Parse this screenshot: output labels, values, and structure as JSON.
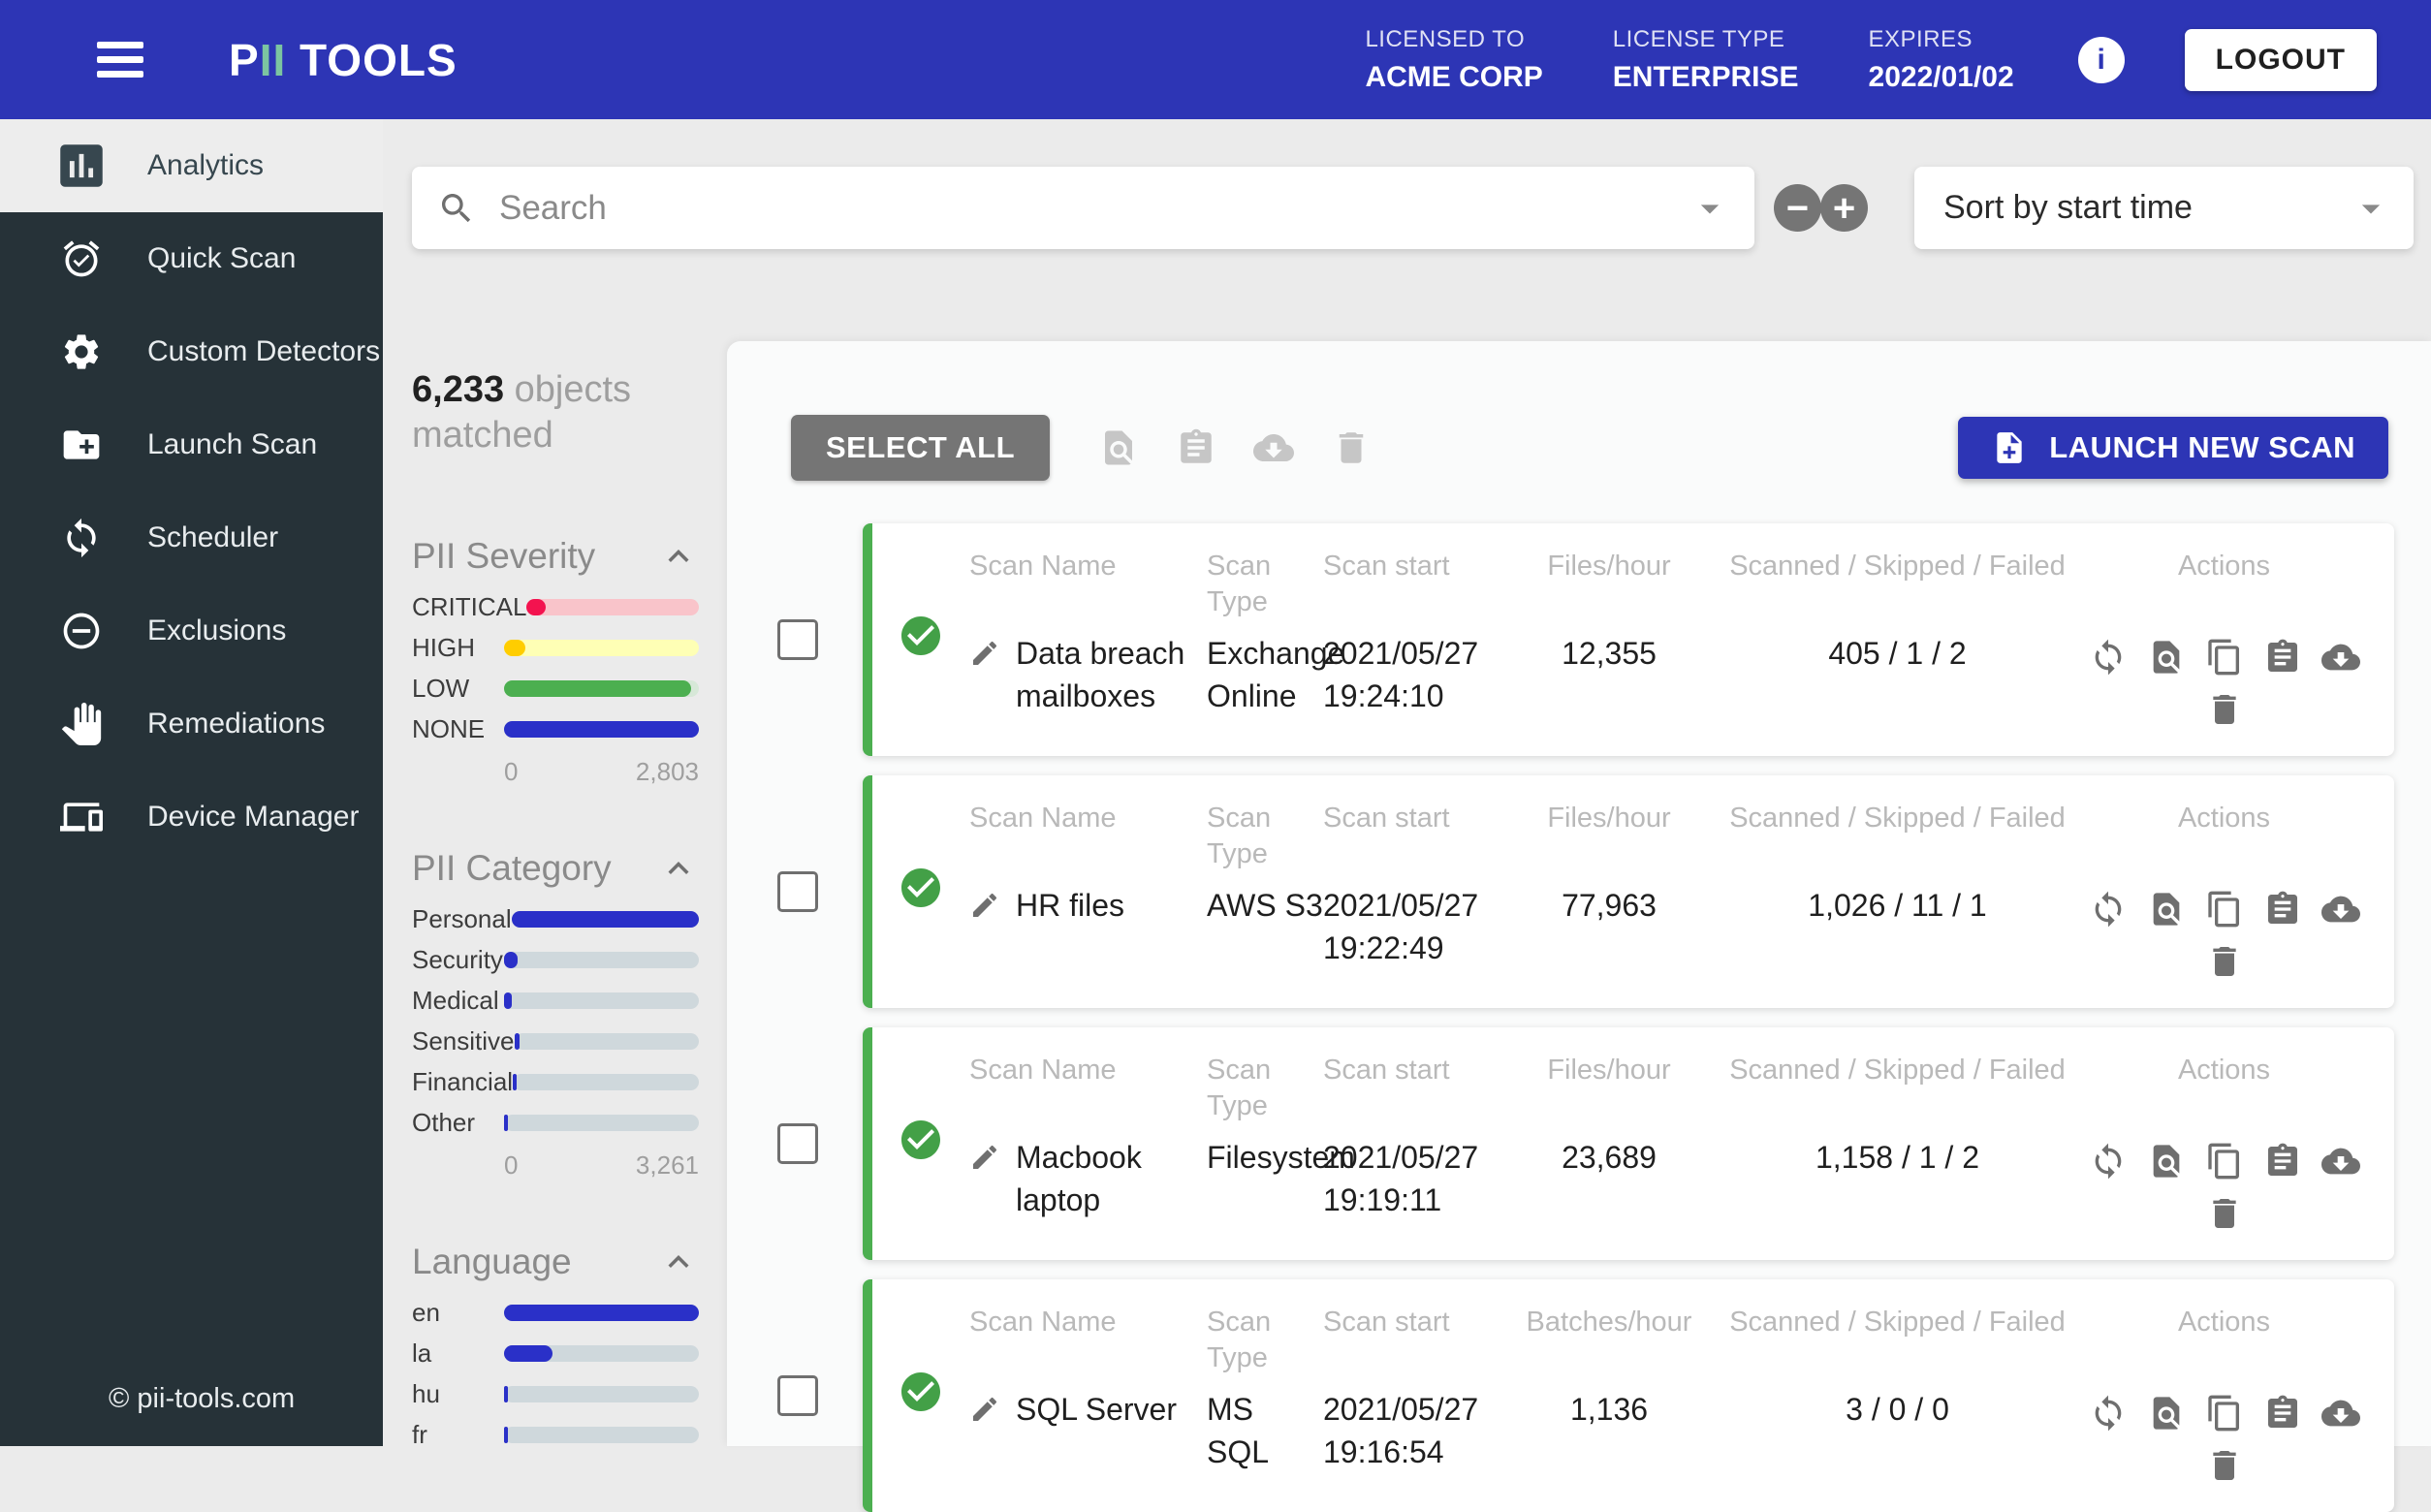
{
  "colors": {
    "brand_blue": "#2d35b5",
    "bar_blue": "#2a30c8",
    "success_green": "#43a047",
    "card_border_green": "#4caf50",
    "critical_red": "#f3134f",
    "high_yellow": "#ffcd00",
    "sidebar_dark": "#263238"
  },
  "header": {
    "logo_part1": "P",
    "logo_part2": "II",
    "logo_part3": " TOOLS",
    "license": [
      {
        "label": "LICENSED TO",
        "value": "ACME CORP"
      },
      {
        "label": "LICENSE TYPE",
        "value": "ENTERPRISE"
      },
      {
        "label": "EXPIRES",
        "value": "2022/01/02"
      }
    ],
    "info_glyph": "i",
    "logout_label": "LOGOUT"
  },
  "sidebar": {
    "items": [
      {
        "label": "Analytics",
        "icon": "bar-chart-icon",
        "active": true
      },
      {
        "label": "Quick Scan",
        "icon": "alarm-check-icon",
        "active": false
      },
      {
        "label": "Custom Detectors",
        "icon": "gear-icon",
        "active": false
      },
      {
        "label": "Launch Scan",
        "icon": "folder-plus-icon",
        "active": false
      },
      {
        "label": "Scheduler",
        "icon": "sync-icon",
        "active": false
      },
      {
        "label": "Exclusions",
        "icon": "minus-circle-icon",
        "active": false
      },
      {
        "label": "Remediations",
        "icon": "hand-icon",
        "active": false
      },
      {
        "label": "Device Manager",
        "icon": "devices-icon",
        "active": false
      }
    ],
    "footer": "© pii-tools.com"
  },
  "toolbar_top": {
    "search_placeholder": "Search",
    "search_icon": "magnifier-icon",
    "collapse_icon": "minus-circle-button",
    "expand_icon": "plus-circle-button",
    "minus_glyph": "−",
    "plus_glyph": "+",
    "sort_value": "Sort by start time"
  },
  "filters": {
    "matched_value": "6,233",
    "matched_label": " objects matched",
    "sections": [
      {
        "title": "PII Severity",
        "axis_min": "0",
        "axis_max": "2,803",
        "rows": [
          {
            "label": "CRITICAL",
            "pct": 11,
            "fill": "#f3134f",
            "track": "#f9c4ca"
          },
          {
            "label": "HIGH",
            "pct": 11,
            "fill": "#ffcd00",
            "track": "#feffb5"
          },
          {
            "label": "LOW",
            "pct": 96,
            "fill": "#4caf50",
            "track": "#d7e8d8"
          },
          {
            "label": "NONE",
            "pct": 100,
            "fill": "#2a30c8",
            "track": "#cfd8dc"
          }
        ]
      },
      {
        "title": "PII Category",
        "axis_min": "0",
        "axis_max": "3,261",
        "rows": [
          {
            "label": "Personal",
            "pct": 100,
            "fill": "#2a30c8",
            "track": "#cfd8dc"
          },
          {
            "label": "Security",
            "pct": 7,
            "fill": "#2a30c8",
            "track": "#cfd8dc"
          },
          {
            "label": "Medical",
            "pct": 4,
            "fill": "#2a30c8",
            "track": "#cfd8dc"
          },
          {
            "label": "Sensitive",
            "pct": 3,
            "fill": "#2a30c8",
            "track": "#cfd8dc"
          },
          {
            "label": "Financial",
            "pct": 2,
            "fill": "#2a30c8",
            "track": "#cfd8dc"
          },
          {
            "label": "Other",
            "pct": 2,
            "fill": "#2a30c8",
            "track": "#cfd8dc"
          }
        ]
      },
      {
        "title": "Language",
        "axis_min": "",
        "axis_max": "",
        "rows": [
          {
            "label": "en",
            "pct": 100,
            "fill": "#2a30c8",
            "track": "#cfd8dc"
          },
          {
            "label": "la",
            "pct": 25,
            "fill": "#2a30c8",
            "track": "#cfd8dc"
          },
          {
            "label": "hu",
            "pct": 2,
            "fill": "#2a30c8",
            "track": "#cfd8dc"
          },
          {
            "label": "fr",
            "pct": 2,
            "fill": "#2a30c8",
            "track": "#cfd8dc"
          }
        ]
      }
    ]
  },
  "scans": {
    "select_all_label": "SELECT ALL",
    "bulk_actions": [
      "preview-icon",
      "report-icon",
      "download-icon",
      "delete-icon"
    ],
    "launch_label": "LAUNCH NEW SCAN",
    "launch_icon": "file-plus-icon",
    "columns": {
      "name": "Scan Name",
      "type": "Scan Type",
      "start": "Scan start",
      "scanned": "Scanned / Skipped / Failed",
      "actions": "Actions"
    },
    "row_actions": [
      "rescan-icon",
      "preview-icon",
      "duplicate-icon",
      "report-icon",
      "download-icon",
      "delete-icon"
    ],
    "status_icon": "check-circle-icon",
    "edit_icon": "pencil-icon",
    "rows": [
      {
        "name": "Data breach mailboxes",
        "type": "Exchange Online",
        "start": "2021/05/27 19:24:10",
        "rate_header": "Files/hour",
        "rate": "12,355",
        "ssf": "405 / 1 / 2"
      },
      {
        "name": "HR files",
        "type": "AWS S3",
        "start": "2021/05/27 19:22:49",
        "rate_header": "Files/hour",
        "rate": "77,963",
        "ssf": "1,026 / 11 / 1"
      },
      {
        "name": "Macbook laptop",
        "type": "Filesystem",
        "start": "2021/05/27 19:19:11",
        "rate_header": "Files/hour",
        "rate": "23,689",
        "ssf": "1,158 / 1 / 2"
      },
      {
        "name": "SQL Server",
        "type": "MS SQL",
        "start": "2021/05/27 19:16:54",
        "rate_header": "Batches/hour",
        "rate": "1,136",
        "ssf": "3 / 0 / 0"
      }
    ]
  }
}
